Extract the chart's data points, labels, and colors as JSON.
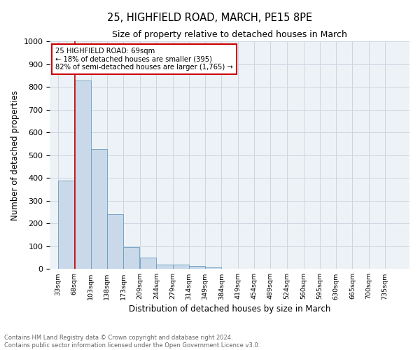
{
  "title1": "25, HIGHFIELD ROAD, MARCH, PE15 8PE",
  "title2": "Size of property relative to detached houses in March",
  "xlabel": "Distribution of detached houses by size in March",
  "ylabel": "Number of detached properties",
  "bin_labels": [
    "33sqm",
    "68sqm",
    "103sqm",
    "138sqm",
    "173sqm",
    "209sqm",
    "244sqm",
    "279sqm",
    "314sqm",
    "349sqm",
    "384sqm",
    "419sqm",
    "454sqm",
    "489sqm",
    "524sqm",
    "560sqm",
    "595sqm",
    "630sqm",
    "665sqm",
    "700sqm",
    "735sqm"
  ],
  "bar_heights": [
    390,
    830,
    528,
    240,
    96,
    50,
    20,
    18,
    14,
    8,
    0,
    0,
    0,
    0,
    0,
    0,
    0,
    0,
    0,
    0
  ],
  "bar_color": "#c9d9ea",
  "bar_edge_color": "#6a9bbf",
  "bin_edges_values": [
    33,
    68,
    103,
    138,
    173,
    209,
    244,
    279,
    314,
    349,
    384,
    419,
    454,
    489,
    524,
    560,
    595,
    630,
    665,
    700,
    735
  ],
  "annotation_text_line1": "25 HIGHFIELD ROAD: 69sqm",
  "annotation_text_line2": "← 18% of detached houses are smaller (395)",
  "annotation_text_line3": "82% of semi-detached houses are larger (1,765) →",
  "annotation_box_color": "#ffffff",
  "annotation_border_color": "#cc0000",
  "vline_color": "#cc0000",
  "footer_text": "Contains HM Land Registry data © Crown copyright and database right 2024.\nContains public sector information licensed under the Open Government Licence v3.0.",
  "ylim": [
    0,
    1000
  ],
  "grid_color": "#ccd6e0",
  "background_color": "#edf2f7"
}
